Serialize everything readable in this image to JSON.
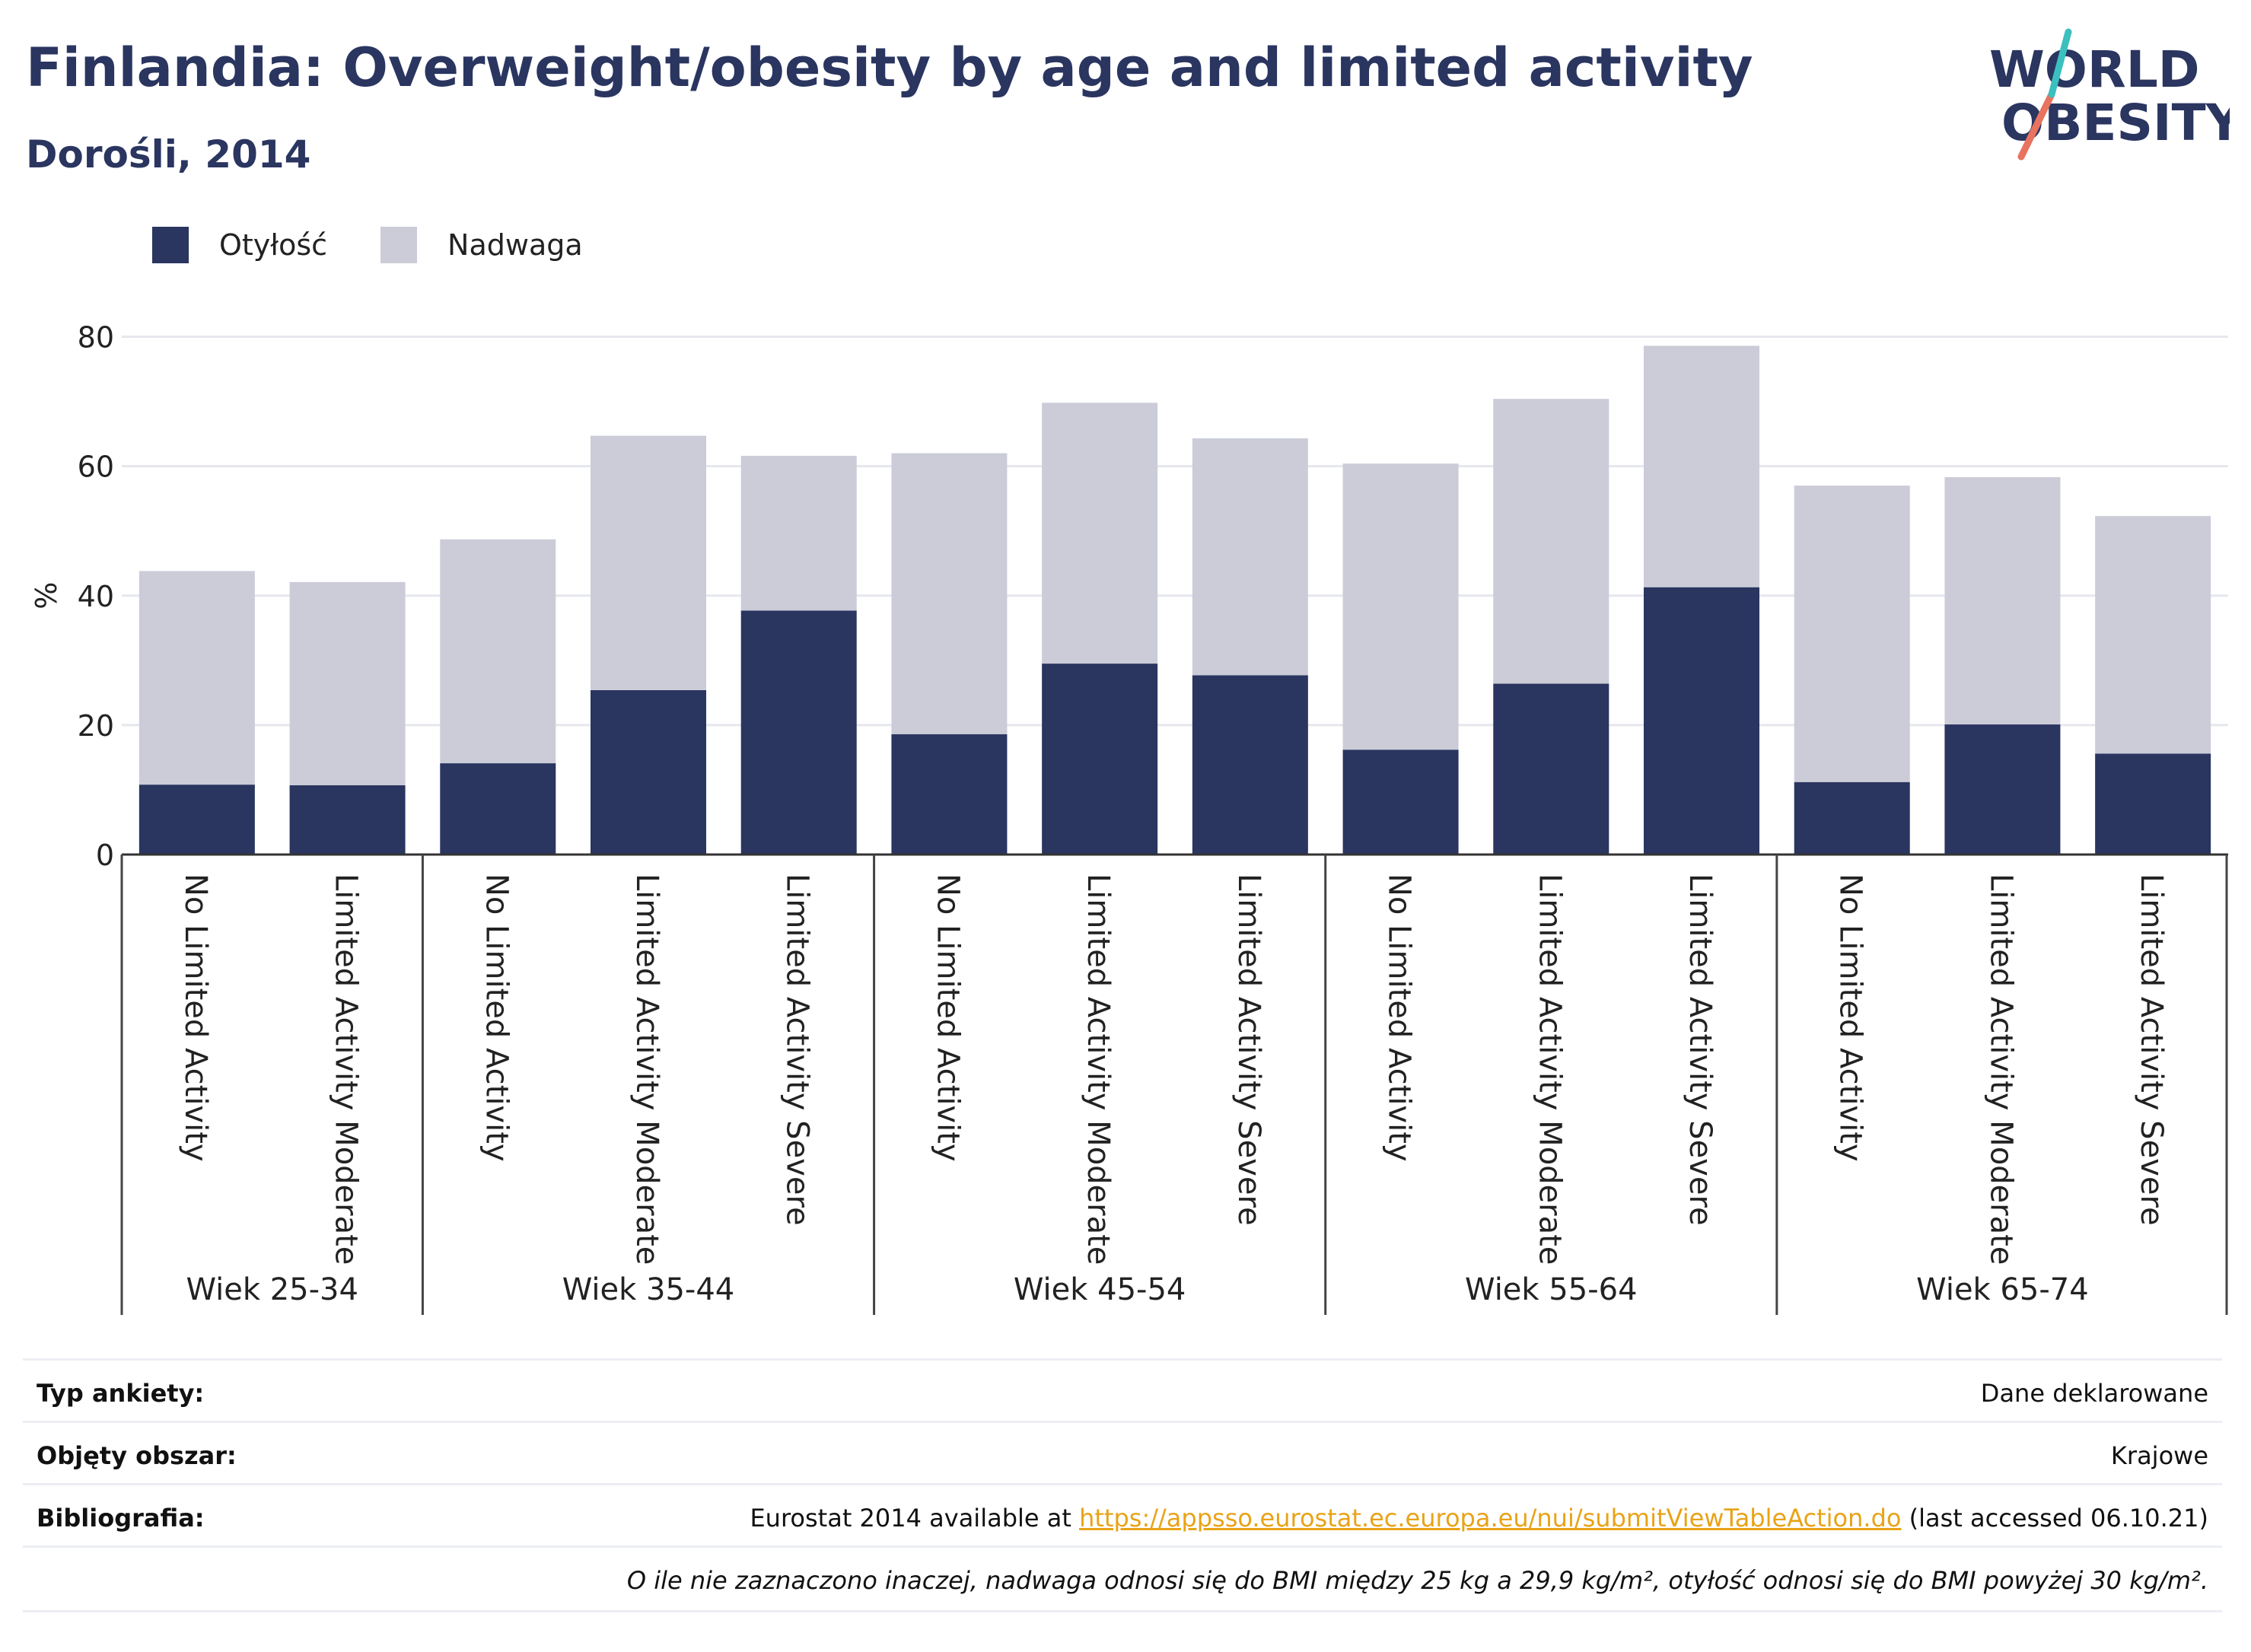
{
  "header": {
    "title": "Finlandia: Overweight/obesity by age and limited activity",
    "subtitle": "Dorośli, 2014"
  },
  "logo": {
    "line1": "WORLD",
    "line2": "OBESITY"
  },
  "legend": [
    {
      "label": "Otyłość",
      "color": "#2a3560"
    },
    {
      "label": "Nadwaga",
      "color": "#cbccd8"
    }
  ],
  "chart_data": {
    "type": "bar",
    "stacked": true,
    "ylabel": "%",
    "ylim": [
      0,
      85
    ],
    "yticks": [
      0,
      20,
      40,
      60,
      80
    ],
    "grid": true,
    "legend_position": "top-left",
    "groups": [
      {
        "label": "Wiek 25-34",
        "categories": [
          "No Limited Activity",
          "Limited Activity Moderate"
        ]
      },
      {
        "label": "Wiek 35-44",
        "categories": [
          "No Limited Activity",
          "Limited Activity Moderate",
          "Limited Activity Severe"
        ]
      },
      {
        "label": "Wiek 45-54",
        "categories": [
          "No Limited Activity",
          "Limited Activity Moderate",
          "Limited Activity Severe"
        ]
      },
      {
        "label": "Wiek 55-64",
        "categories": [
          "No Limited Activity",
          "Limited Activity Moderate",
          "Limited Activity Severe"
        ]
      },
      {
        "label": "Wiek 65-74",
        "categories": [
          "No Limited Activity",
          "Limited Activity Moderate",
          "Limited Activity Severe"
        ]
      }
    ],
    "series": [
      {
        "name": "Otyłość",
        "color": "#2a3560",
        "values": [
          10.8,
          10.7,
          14.1,
          25.4,
          37.7,
          18.6,
          29.5,
          27.7,
          16.2,
          26.4,
          41.3,
          11.2,
          20.1,
          15.6
        ]
      },
      {
        "name": "Nadwaga",
        "color": "#cbccd8",
        "values": [
          33.0,
          31.4,
          34.6,
          39.3,
          23.9,
          43.4,
          40.3,
          36.6,
          44.2,
          44.0,
          37.3,
          45.8,
          38.2,
          36.7
        ]
      }
    ]
  },
  "info": {
    "rows": [
      {
        "label": "Typ ankiety:",
        "value": "Dane deklarowane"
      },
      {
        "label": "Objęty obszar:",
        "value": "Krajowe"
      },
      {
        "label": "Bibliografia:",
        "value_pre": "Eurostat 2014 available at ",
        "link": "https://appsso.eurostat.ec.europa.eu/nui/submitViewTableAction.do",
        "value_post": " (last accessed 06.10.21)"
      }
    ],
    "note": "O ile nie zaznaczono inaczej, nadwaga odnosi się do BMI między 25 kg a 29,9 kg/m², otyłość odnosi się do BMI powyżej 30 kg/m²."
  }
}
